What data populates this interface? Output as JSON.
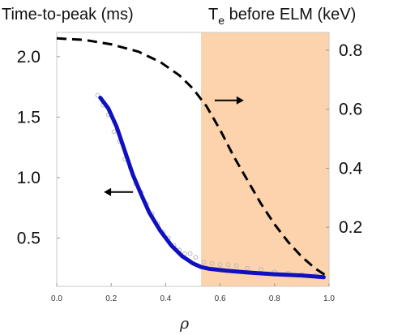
{
  "chart_data": {
    "type": "line",
    "left_title": "Time-to-peak (ms)",
    "right_title_prefix": "T",
    "right_title_sub": "e",
    "right_title_suffix": " before ELM (keV)",
    "xlabel": "ρ",
    "xlim": [
      0.0,
      1.0
    ],
    "ylim_left": [
      0.1,
      2.2
    ],
    "ylim_right": [
      0.0,
      0.86
    ],
    "x_ticks": [
      "0.0",
      "0.2",
      "0.4",
      "0.6",
      "0.8",
      "1.0"
    ],
    "y_left_ticks": [
      "0.5",
      "1.0",
      "1.5",
      "2.0"
    ],
    "y_right_ticks": [
      "0.2",
      "0.4",
      "0.6",
      "0.8"
    ],
    "shaded_region": {
      "x_start": 0.53,
      "x_end": 1.0,
      "color": "#fcd3ad"
    },
    "series": [
      {
        "axis": "left",
        "style": "solid",
        "color": "#1010c0",
        "x": [
          0.16,
          0.19,
          0.22,
          0.25,
          0.28,
          0.31,
          0.34,
          0.38,
          0.42,
          0.46,
          0.5,
          0.53,
          0.56,
          0.62,
          0.7,
          0.8,
          0.9,
          0.98
        ],
        "y": [
          1.66,
          1.57,
          1.42,
          1.22,
          1.02,
          0.86,
          0.71,
          0.56,
          0.44,
          0.35,
          0.29,
          0.26,
          0.245,
          0.23,
          0.215,
          0.2,
          0.19,
          0.175
        ]
      },
      {
        "axis": "right",
        "style": "dashed",
        "color": "#000000",
        "x": [
          0.0,
          0.1,
          0.2,
          0.3,
          0.38,
          0.45,
          0.5,
          0.55,
          0.6,
          0.65,
          0.7,
          0.75,
          0.8,
          0.85,
          0.9,
          0.95,
          1.0
        ],
        "y": [
          0.84,
          0.835,
          0.82,
          0.795,
          0.76,
          0.715,
          0.67,
          0.61,
          0.53,
          0.44,
          0.36,
          0.28,
          0.21,
          0.15,
          0.1,
          0.06,
          0.03
        ]
      },
      {
        "axis": "left",
        "style": "scatter",
        "color": "#b8b8b8",
        "x": [
          0.15,
          0.17,
          0.19,
          0.21,
          0.23,
          0.25,
          0.27,
          0.29,
          0.31,
          0.33,
          0.35,
          0.37,
          0.39,
          0.41,
          0.43,
          0.45,
          0.47,
          0.49,
          0.51,
          0.54,
          0.57,
          0.6,
          0.63,
          0.66,
          0.7,
          0.75,
          0.8,
          0.85,
          0.9,
          0.95,
          0.98
        ],
        "y": [
          1.68,
          1.6,
          1.52,
          1.38,
          1.3,
          1.15,
          1.08,
          0.95,
          0.88,
          0.78,
          0.7,
          0.62,
          0.55,
          0.5,
          0.44,
          0.4,
          0.37,
          0.37,
          0.34,
          0.3,
          0.29,
          0.28,
          0.28,
          0.27,
          0.25,
          0.24,
          0.22,
          0.21,
          0.2,
          0.19,
          0.18
        ]
      }
    ],
    "annotations": [
      {
        "type": "arrow",
        "direction": "right",
        "x": 0.58,
        "y_right": 0.63
      },
      {
        "type": "arrow",
        "direction": "left",
        "x": 0.28,
        "y_left": 0.88
      }
    ]
  }
}
